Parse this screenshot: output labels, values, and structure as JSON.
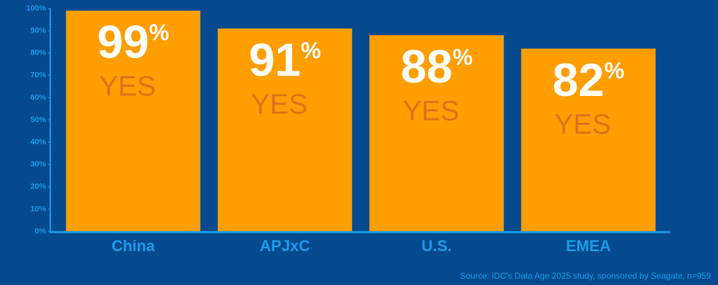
{
  "chart_data": {
    "type": "bar",
    "categories": [
      "China",
      "APJxC",
      "U.S.",
      "EMEA"
    ],
    "values": [
      99,
      91,
      88,
      82
    ],
    "value_labels": [
      "99%",
      "91%",
      "88%",
      "82%"
    ],
    "value_sublabels": [
      "YES",
      "YES",
      "YES",
      "YES"
    ],
    "color": "#ff9e00",
    "ylim": [
      0,
      100
    ],
    "yticks": [
      {
        "value": 0,
        "label": "0%"
      },
      {
        "value": 10,
        "label": "10%"
      },
      {
        "value": 20,
        "label": "20%"
      },
      {
        "value": 30,
        "label": "30%"
      },
      {
        "value": 40,
        "label": "40%"
      },
      {
        "value": 50,
        "label": "50%"
      },
      {
        "value": 60,
        "label": "60%"
      },
      {
        "value": 70,
        "label": "70%"
      },
      {
        "value": 80,
        "label": "80%"
      },
      {
        "value": 90,
        "label": "90%"
      },
      {
        "value": 100,
        "label": "100%"
      }
    ],
    "source": "Source: IDC's Data Age 2025 study, sponsored by Seagate, n=959"
  }
}
